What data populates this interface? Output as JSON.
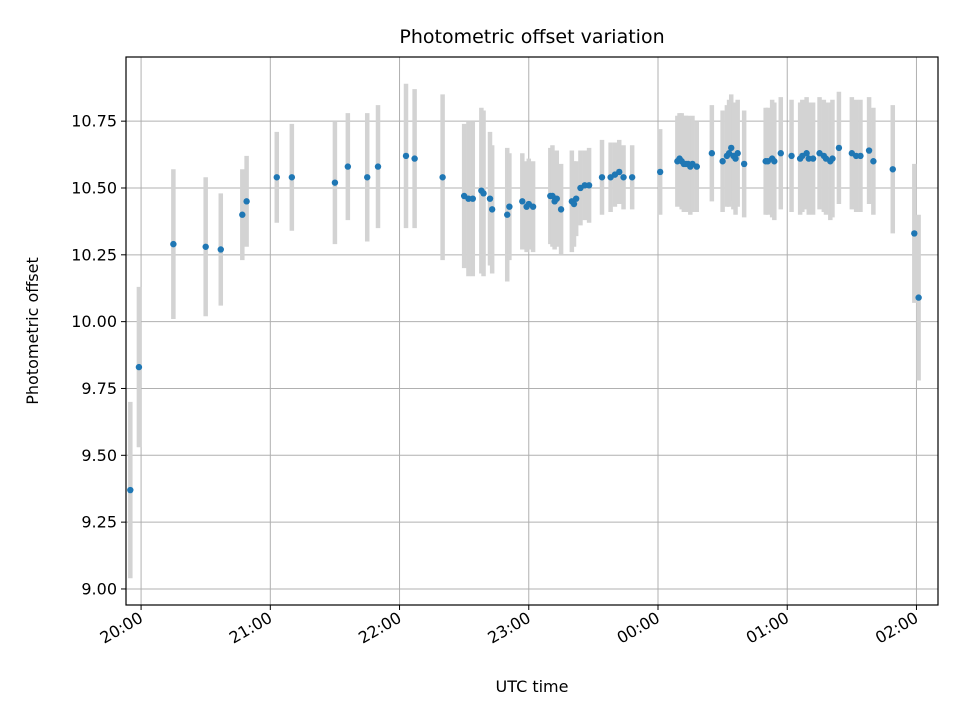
{
  "chart_data": {
    "type": "scatter",
    "title": "Photometric offset variation",
    "xlabel": "UTC time",
    "ylabel": "Photometric offset",
    "x_ticks": [
      "20:00",
      "21:00",
      "22:00",
      "23:00",
      "00:00",
      "01:00",
      "02:00"
    ],
    "y_ticks": [
      "9.00",
      "9.25",
      "9.50",
      "9.75",
      "10.00",
      "10.25",
      "10.50",
      "10.75"
    ],
    "xlim": [
      "19:53",
      "02:10"
    ],
    "ylim": [
      8.94,
      10.99
    ],
    "grid": true,
    "point_color": "#1f77b4",
    "errorbar_color": "#d3d3d3",
    "series": [
      {
        "x": [
          "19:55",
          "19:59",
          "20:15",
          "20:30",
          "20:37",
          "20:47",
          "20:49",
          "21:03",
          "21:10",
          "21:30",
          "21:36",
          "21:45",
          "21:50",
          "22:03",
          "22:07",
          "22:20",
          "22:30",
          "22:32",
          "22:34",
          "22:38",
          "22:39",
          "22:42",
          "22:43",
          "22:50",
          "22:51",
          "22:57",
          "22:59",
          "23:00",
          "23:02",
          "23:10",
          "23:11",
          "23:12",
          "23:13",
          "23:15",
          "23:20",
          "23:21",
          "23:22",
          "23:24",
          "23:26",
          "23:28",
          "23:34",
          "23:38",
          "23:40",
          "23:42",
          "23:44",
          "23:48",
          "24:01",
          "24:09",
          "24:10",
          "24:11",
          "24:12",
          "24:13",
          "24:14",
          "24:15",
          "24:16",
          "24:18",
          "24:25",
          "24:30",
          "24:32",
          "24:33",
          "24:34",
          "24:35",
          "24:36",
          "24:37",
          "24:40",
          "24:50",
          "24:51",
          "24:53",
          "24:54",
          "24:57",
          "25:02",
          "25:06",
          "25:07",
          "25:09",
          "25:10",
          "25:12",
          "25:15",
          "25:17",
          "25:18",
          "25:20",
          "25:21",
          "25:24",
          "25:30",
          "25:32",
          "25:34",
          "25:38",
          "25:40",
          "25:49",
          "25:59",
          "26:01"
        ],
        "y": [
          9.37,
          9.83,
          10.29,
          10.28,
          10.27,
          10.4,
          10.45,
          10.54,
          10.54,
          10.52,
          10.58,
          10.54,
          10.58,
          10.62,
          10.61,
          10.54,
          10.47,
          10.46,
          10.46,
          10.49,
          10.48,
          10.46,
          10.42,
          10.4,
          10.43,
          10.45,
          10.43,
          10.44,
          10.43,
          10.47,
          10.47,
          10.45,
          10.46,
          10.42,
          10.45,
          10.44,
          10.46,
          10.5,
          10.51,
          10.51,
          10.54,
          10.54,
          10.55,
          10.56,
          10.54,
          10.54,
          10.56,
          10.6,
          10.61,
          10.6,
          10.59,
          10.59,
          10.59,
          10.58,
          10.59,
          10.58,
          10.63,
          10.6,
          10.62,
          10.63,
          10.65,
          10.62,
          10.61,
          10.63,
          10.59,
          10.6,
          10.6,
          10.61,
          10.6,
          10.63,
          10.62,
          10.61,
          10.62,
          10.63,
          10.61,
          10.61,
          10.63,
          10.62,
          10.61,
          10.6,
          10.61,
          10.65,
          10.63,
          10.62,
          10.62,
          10.64,
          10.6,
          10.57,
          10.33,
          10.09
        ],
        "yerr": [
          0.33,
          0.3,
          0.28,
          0.26,
          0.21,
          0.17,
          0.17,
          0.17,
          0.2,
          0.23,
          0.2,
          0.24,
          0.23,
          0.27,
          0.26,
          0.31,
          0.27,
          0.29,
          0.29,
          0.31,
          0.31,
          0.25,
          0.24,
          0.25,
          0.2,
          0.18,
          0.17,
          0.17,
          0.17,
          0.18,
          0.19,
          0.18,
          0.18,
          0.17,
          0.19,
          0.16,
          0.14,
          0.14,
          0.13,
          0.14,
          0.14,
          0.13,
          0.12,
          0.12,
          0.12,
          0.12,
          0.16,
          0.17,
          0.17,
          0.18,
          0.18,
          0.18,
          0.18,
          0.18,
          0.18,
          0.17,
          0.18,
          0.19,
          0.19,
          0.2,
          0.2,
          0.2,
          0.21,
          0.2,
          0.2,
          0.2,
          0.2,
          0.22,
          0.22,
          0.21,
          0.21,
          0.21,
          0.21,
          0.21,
          0.21,
          0.21,
          0.21,
          0.21,
          0.21,
          0.22,
          0.22,
          0.21,
          0.21,
          0.21,
          0.21,
          0.2,
          0.2,
          0.24,
          0.26,
          0.31
        ]
      }
    ]
  }
}
